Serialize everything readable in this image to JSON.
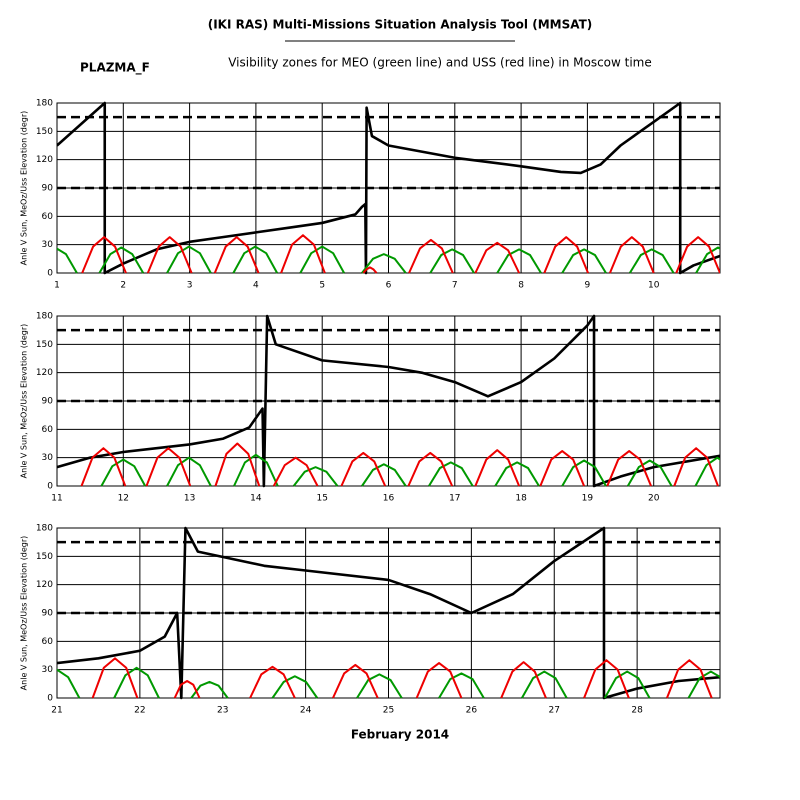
{
  "title": "(IKI RAS) Multi-Missions Situation Analysis Tool (MMSAT)",
  "satellite": "PLAZMA_F",
  "subtitle": "Visibility zones for MEO (green line) and USS (red line) in Moscow time",
  "xlabel": "February 2014",
  "chart_data": [
    {
      "type": "line",
      "ylabel": "Anle V Sun, MeOz/Uss Elevation (degr)",
      "xlim": [
        1,
        11
      ],
      "xticks": [
        1,
        2,
        3,
        4,
        5,
        6,
        7,
        8,
        9,
        10
      ],
      "ylim": [
        0,
        180
      ],
      "yticks": [
        0,
        30,
        60,
        90,
        120,
        150,
        180
      ],
      "grid": true,
      "reference_lines": [
        90,
        165
      ],
      "series": [
        {
          "color": "#000000",
          "x": [
            1,
            1.72,
            1.72,
            2,
            2.5,
            3,
            3.5,
            4,
            4.5,
            5,
            5.5,
            5.6,
            5.65,
            5.66,
            5.67,
            5.75,
            6,
            7,
            8,
            8.6,
            8.9,
            9.2,
            9.5,
            10,
            10.4,
            10.4,
            10.6,
            11
          ],
          "values": [
            135,
            180,
            0,
            10,
            25,
            33,
            38,
            43,
            48,
            53,
            62,
            70,
            73,
            0,
            175,
            145,
            135,
            122,
            113,
            107,
            106,
            115,
            135,
            160,
            180,
            0,
            8,
            18
          ]
        },
        {
          "color": "#009900",
          "x": [
            0.64,
            0.805,
            0.97,
            1.135,
            1.3,
            null,
            1.64,
            1.805,
            1.97,
            2.135,
            2.3,
            null,
            2.66,
            2.825,
            2.99,
            3.155,
            3.32,
            null,
            3.66,
            3.825,
            3.99,
            4.155,
            4.32,
            null,
            4.67,
            4.835,
            5.0,
            5.165,
            5.33,
            null,
            5.6,
            5.765,
            5.93,
            6.095,
            6.26,
            null,
            6.63,
            6.795,
            6.96,
            7.125,
            7.29,
            null,
            7.64,
            7.805,
            7.97,
            8.135,
            8.3,
            null,
            8.62,
            8.785,
            8.95,
            9.115,
            9.28,
            null,
            9.64,
            9.805,
            9.97,
            10.135,
            10.3,
            null,
            10.64,
            10.805,
            10.97,
            11.135,
            11.3
          ],
          "values": [
            0,
            20,
            27,
            20,
            0,
            null,
            0,
            20,
            27,
            20,
            0,
            null,
            0,
            21,
            28,
            21,
            0,
            null,
            0,
            21,
            28,
            21,
            0,
            null,
            0,
            21,
            28,
            21,
            0,
            null,
            0,
            15,
            20,
            15,
            0,
            null,
            0,
            19,
            25,
            19,
            0,
            null,
            0,
            19,
            25,
            19,
            0,
            null,
            0,
            19,
            25,
            19,
            0,
            null,
            0,
            19,
            25,
            19,
            0,
            null,
            0,
            20,
            27,
            20,
            0
          ]
        },
        {
          "color": "#ee0000",
          "x": [
            1.38,
            1.545,
            1.71,
            1.875,
            2.04,
            null,
            2.37,
            2.535,
            2.7,
            2.865,
            3.03,
            null,
            3.38,
            3.545,
            3.71,
            3.875,
            4.04,
            null,
            4.38,
            4.545,
            4.71,
            4.875,
            5.04,
            null,
            5.62,
            5.67,
            5.72,
            5.77,
            5.82,
            null,
            6.31,
            6.475,
            6.64,
            6.805,
            6.97,
            null,
            7.31,
            7.475,
            7.64,
            7.805,
            7.97,
            null,
            8.35,
            8.515,
            8.68,
            8.845,
            9.01,
            null,
            9.34,
            9.505,
            9.67,
            9.835,
            10.0,
            null,
            10.34,
            10.505,
            10.67,
            10.835,
            11.0
          ],
          "values": [
            0,
            28,
            38,
            28,
            0,
            null,
            0,
            28,
            38,
            28,
            0,
            null,
            0,
            28,
            38,
            28,
            0,
            null,
            0,
            30,
            40,
            30,
            0,
            null,
            0,
            4,
            6,
            4,
            0,
            null,
            0,
            26,
            35,
            26,
            0,
            null,
            0,
            24,
            32,
            24,
            0,
            null,
            0,
            28,
            38,
            28,
            0,
            null,
            0,
            28,
            38,
            28,
            0,
            null,
            0,
            28,
            38,
            28,
            0
          ]
        }
      ]
    },
    {
      "type": "line",
      "ylabel": "Anle V Sun, MeOz/Uss Elevation (degr)",
      "xlim": [
        11,
        21
      ],
      "xticks": [
        11,
        12,
        13,
        14,
        15,
        16,
        17,
        18,
        19,
        20
      ],
      "ylim": [
        0,
        180
      ],
      "yticks": [
        0,
        30,
        60,
        90,
        120,
        150,
        180
      ],
      "grid": true,
      "reference_lines": [
        90,
        165
      ],
      "series": [
        {
          "color": "#000000",
          "x": [
            11,
            11.5,
            12,
            13,
            13.5,
            13.9,
            14.1,
            14.12,
            14.17,
            14.3,
            15,
            16,
            16.5,
            17,
            17.5,
            18,
            18.5,
            19,
            19.1,
            19.1,
            19.5,
            20,
            21
          ],
          "values": [
            20,
            30,
            36,
            44,
            50,
            62,
            82,
            0,
            180,
            150,
            133,
            126,
            120,
            110,
            95,
            110,
            135,
            170,
            180,
            0,
            10,
            20,
            32
          ]
        },
        {
          "color": "#009900",
          "x": [
            11.67,
            11.835,
            12.0,
            12.165,
            12.33,
            null,
            12.66,
            12.825,
            12.99,
            13.155,
            13.32,
            null,
            13.67,
            13.835,
            14.0,
            14.165,
            14.33,
            null,
            14.57,
            14.735,
            14.9,
            15.065,
            15.23,
            null,
            15.6,
            15.765,
            15.93,
            16.095,
            16.26,
            null,
            16.61,
            16.775,
            16.94,
            17.105,
            17.27,
            null,
            17.61,
            17.775,
            17.94,
            18.105,
            18.27,
            null,
            18.62,
            18.785,
            18.95,
            19.115,
            19.28,
            null,
            19.61,
            19.775,
            19.94,
            20.105,
            20.27,
            null,
            20.63,
            20.795,
            20.96,
            21.125,
            21.29
          ],
          "values": [
            0,
            21,
            28,
            21,
            0,
            null,
            0,
            22,
            30,
            22,
            0,
            null,
            0,
            25,
            33,
            25,
            0,
            null,
            0,
            15,
            20,
            15,
            0,
            null,
            0,
            17,
            23,
            17,
            0,
            null,
            0,
            19,
            25,
            19,
            0,
            null,
            0,
            19,
            25,
            19,
            0,
            null,
            0,
            20,
            27,
            20,
            0,
            null,
            0,
            20,
            27,
            20,
            0,
            null,
            0,
            22,
            30,
            22,
            0
          ]
        },
        {
          "color": "#ee0000",
          "x": [
            11.37,
            11.535,
            11.7,
            11.865,
            12.03,
            null,
            12.35,
            12.515,
            12.68,
            12.845,
            13.01,
            null,
            13.39,
            13.555,
            13.72,
            13.885,
            14.05,
            null,
            14.27,
            14.435,
            14.6,
            14.765,
            14.93,
            null,
            15.29,
            15.455,
            15.62,
            15.785,
            15.95,
            null,
            16.3,
            16.465,
            16.63,
            16.795,
            16.96,
            null,
            17.31,
            17.475,
            17.64,
            17.805,
            17.97,
            null,
            18.29,
            18.455,
            18.62,
            18.785,
            18.95,
            null,
            19.3,
            19.465,
            19.63,
            19.795,
            19.96,
            null,
            20.31,
            20.475,
            20.64,
            20.805,
            20.97
          ],
          "values": [
            0,
            30,
            40,
            30,
            0,
            null,
            0,
            30,
            40,
            30,
            0,
            null,
            0,
            34,
            45,
            34,
            0,
            null,
            0,
            22,
            30,
            22,
            0,
            null,
            0,
            26,
            35,
            26,
            0,
            null,
            0,
            26,
            35,
            26,
            0,
            null,
            0,
            28,
            38,
            28,
            0,
            null,
            0,
            28,
            37,
            28,
            0,
            null,
            0,
            28,
            37,
            28,
            0,
            null,
            0,
            30,
            40,
            30,
            0
          ]
        }
      ]
    },
    {
      "type": "line",
      "ylabel": "Anle V Sun, MeOz/Uss Elevation (degr)",
      "xlim": [
        21,
        29
      ],
      "xticks": [
        21,
        22,
        23,
        24,
        25,
        26,
        27,
        28
      ],
      "ylim": [
        0,
        180
      ],
      "yticks": [
        0,
        30,
        60,
        90,
        120,
        150,
        180
      ],
      "grid": true,
      "reference_lines": [
        90,
        165
      ],
      "series": [
        {
          "color": "#000000",
          "x": [
            21,
            21.5,
            22,
            22.3,
            22.45,
            22.5,
            22.55,
            22.7,
            23.5,
            24,
            25,
            25.5,
            26,
            26.5,
            27,
            27.6,
            27.6,
            28,
            28.5,
            29
          ],
          "values": [
            37,
            42,
            50,
            65,
            90,
            0,
            180,
            155,
            140,
            135,
            125,
            110,
            90,
            110,
            145,
            180,
            0,
            10,
            18,
            22
          ]
        },
        {
          "color": "#009900",
          "x": [
            20.73,
            20.865,
            21.0,
            21.135,
            21.27,
            null,
            21.69,
            21.825,
            21.96,
            22.095,
            22.23,
            null,
            22.62,
            22.73,
            22.84,
            22.95,
            23.06,
            null,
            23.6,
            23.735,
            23.87,
            24.005,
            24.14,
            null,
            24.62,
            24.755,
            24.89,
            25.025,
            25.16,
            null,
            25.61,
            25.745,
            25.88,
            26.015,
            26.15,
            null,
            26.61,
            26.745,
            26.88,
            27.015,
            27.15,
            null,
            27.61,
            27.745,
            27.88,
            28.015,
            28.15,
            null,
            28.62,
            28.755,
            28.89,
            29.025,
            29.16
          ],
          "values": [
            0,
            22,
            30,
            22,
            0,
            null,
            0,
            24,
            32,
            24,
            0,
            null,
            0,
            13,
            17,
            13,
            0,
            null,
            0,
            17,
            23,
            17,
            0,
            null,
            0,
            19,
            25,
            19,
            0,
            null,
            0,
            20,
            26,
            20,
            0,
            null,
            0,
            21,
            28,
            21,
            0,
            null,
            0,
            21,
            28,
            21,
            0,
            null,
            0,
            21,
            28,
            21,
            0
          ]
        },
        {
          "color": "#ee0000",
          "x": [
            21.43,
            21.565,
            21.7,
            21.835,
            21.97,
            null,
            22.42,
            22.495,
            22.57,
            22.645,
            22.72,
            null,
            23.33,
            23.465,
            23.6,
            23.735,
            23.87,
            null,
            24.33,
            24.465,
            24.6,
            24.735,
            24.87,
            null,
            25.34,
            25.475,
            25.61,
            25.745,
            25.88,
            null,
            26.36,
            26.495,
            26.63,
            26.765,
            26.9,
            null,
            27.36,
            27.495,
            27.63,
            27.765,
            27.9,
            null,
            28.36,
            28.495,
            28.63,
            28.765,
            28.9
          ],
          "values": [
            0,
            32,
            42,
            32,
            0,
            null,
            0,
            14,
            18,
            14,
            0,
            null,
            0,
            25,
            33,
            25,
            0,
            null,
            0,
            26,
            35,
            26,
            0,
            null,
            0,
            28,
            37,
            28,
            0,
            null,
            0,
            28,
            38,
            28,
            0,
            null,
            0,
            30,
            40,
            30,
            0,
            null,
            0,
            30,
            40,
            30,
            0
          ]
        }
      ]
    }
  ]
}
